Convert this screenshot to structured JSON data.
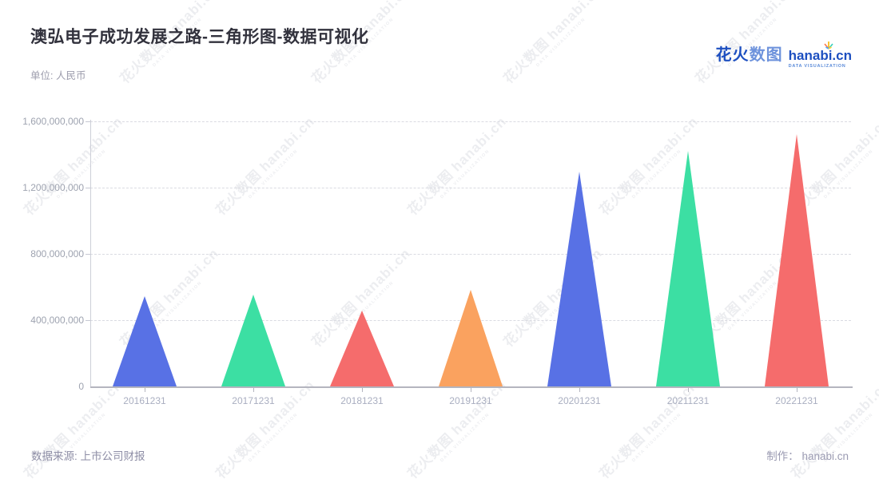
{
  "header": {
    "title": "澳弘电子成功发展之路-三角形图-数据可视化",
    "subtitle": "单位: 人民币"
  },
  "logo": {
    "brand_bold": "花火",
    "brand_light": "数图",
    "domain": "hanabi.cn",
    "tagline": "DATA VISUALIZATION"
  },
  "watermark": {
    "main": "花火数图 hanabi.cn",
    "sub": "DATA VISUALIZATION"
  },
  "chart_data": {
    "type": "bar",
    "subtype": "triangle-pictorial",
    "title": "澳弘电子成功发展之路-三角形图-数据可视化",
    "unit": "人民币",
    "categories": [
      "20161231",
      "20171231",
      "20181231",
      "20191231",
      "20201231",
      "20211231",
      "20221231"
    ],
    "values": [
      545000000,
      556000000,
      460000000,
      585000000,
      1298000000,
      1421000000,
      1525000000
    ],
    "colors": [
      "#5871e5",
      "#3cdfa3",
      "#f56c6c",
      "#faa25f",
      "#5871e5",
      "#3cdfa3",
      "#f56c6c"
    ],
    "xlabel": "",
    "ylabel": "",
    "ylim": [
      0,
      1600000000
    ],
    "yticks": [
      0,
      400000000,
      800000000,
      1200000000,
      1600000000
    ],
    "ytick_labels": [
      "0",
      "400,000,000",
      "800,000,000",
      "1,200,000,000",
      "1,600,000,000"
    ],
    "grid": "dashed-horizontal",
    "legend": "none"
  },
  "footer": {
    "source": "数据来源: 上市公司财报",
    "credit": "制作： hanabi.cn"
  }
}
